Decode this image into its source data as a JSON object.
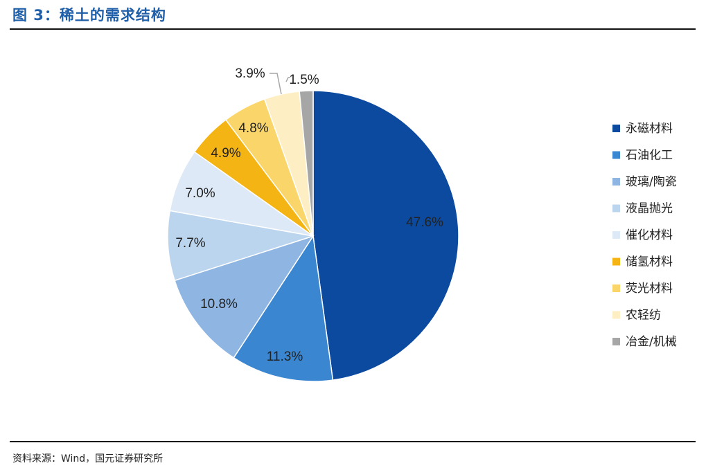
{
  "figure": {
    "title": "图 3：稀土的需求结构",
    "source": "资料来源：Wind，国元证券研究所"
  },
  "chart_data": {
    "type": "pie",
    "title": "",
    "legend_position": "right",
    "slices": [
      {
        "name": "永磁材料",
        "value": 47.6,
        "label": "47.6%",
        "color": "#0c4aa0"
      },
      {
        "name": "石油化工",
        "value": 11.3,
        "label": "11.3%",
        "color": "#3a86d0"
      },
      {
        "name": "玻璃/陶瓷",
        "value": 10.8,
        "label": "10.8%",
        "color": "#8fb6e2"
      },
      {
        "name": "液晶抛光",
        "value": 7.7,
        "label": "7.7%",
        "color": "#bcd5ee"
      },
      {
        "name": "催化材料",
        "value": 7.0,
        "label": "7.0%",
        "color": "#dde9f6"
      },
      {
        "name": "储氢材料",
        "value": 4.9,
        "label": "4.9%",
        "color": "#f4b414"
      },
      {
        "name": "荧光材料",
        "value": 4.8,
        "label": "4.8%",
        "color": "#fad66a"
      },
      {
        "name": "农轻纺",
        "value": 3.9,
        "label": "3.9%",
        "color": "#fdeec4"
      },
      {
        "name": "冶金/机械",
        "value": 1.5,
        "label": "1.5%",
        "color": "#a6a6a6"
      }
    ]
  }
}
